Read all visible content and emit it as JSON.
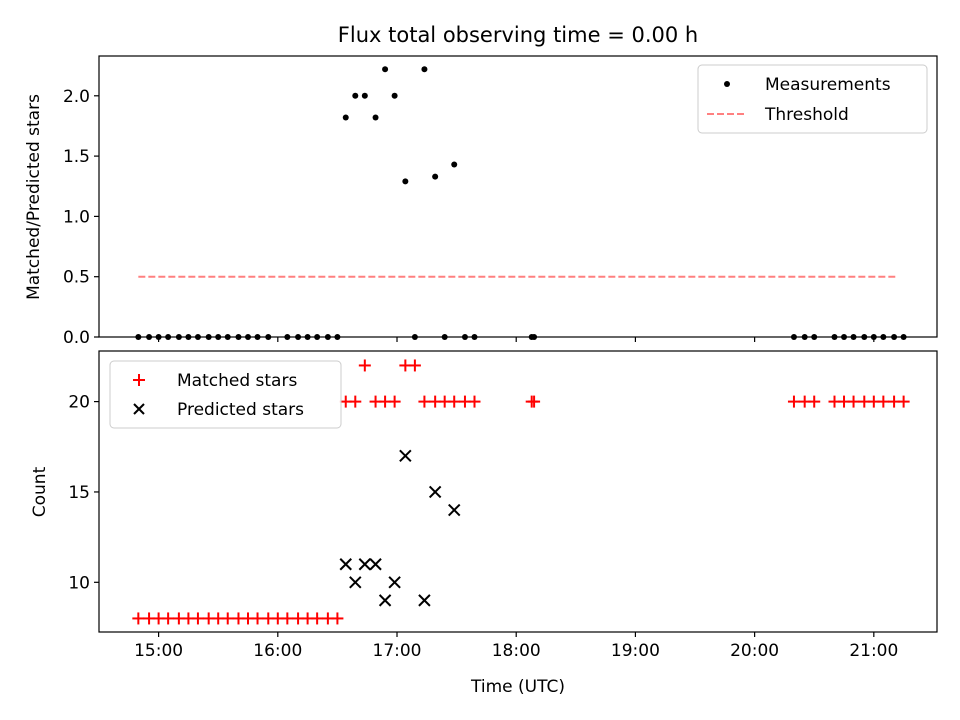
{
  "chart_data": {
    "title": "Flux total observing time = 0.00 h",
    "xlabel": "Time (UTC)",
    "x_unit": "hours UTC",
    "xlim": [
      14.5,
      21.53
    ],
    "xticks": [
      {
        "value": 15,
        "label": "15:00"
      },
      {
        "value": 16,
        "label": "16:00"
      },
      {
        "value": 17,
        "label": "17:00"
      },
      {
        "value": 18,
        "label": "18:00"
      },
      {
        "value": 19,
        "label": "19:00"
      },
      {
        "value": 20,
        "label": "20:00"
      },
      {
        "value": 21,
        "label": "21:00"
      }
    ],
    "panels": [
      {
        "type": "scatter",
        "ylabel": "Matched/Predicted stars",
        "ylim": [
          0,
          2.33
        ],
        "yticks": [
          "0.0",
          "0.5",
          "1.0",
          "1.5",
          "2.0"
        ],
        "legend": {
          "position": "top-right",
          "entries": [
            "Measurements",
            "Threshold"
          ]
        },
        "series": [
          {
            "name": "Measurements",
            "marker": "dot",
            "color": "#000000",
            "points": [
              [
                14.83,
                0
              ],
              [
                14.92,
                0
              ],
              [
                15.0,
                0
              ],
              [
                15.08,
                0
              ],
              [
                15.17,
                0
              ],
              [
                15.25,
                0
              ],
              [
                15.33,
                0
              ],
              [
                15.42,
                0
              ],
              [
                15.5,
                0
              ],
              [
                15.58,
                0
              ],
              [
                15.67,
                0
              ],
              [
                15.75,
                0
              ],
              [
                15.83,
                0
              ],
              [
                15.92,
                0
              ],
              [
                16.08,
                0
              ],
              [
                16.17,
                0
              ],
              [
                16.25,
                0
              ],
              [
                16.33,
                0
              ],
              [
                16.42,
                0
              ],
              [
                16.5,
                0
              ],
              [
                16.57,
                1.82
              ],
              [
                16.65,
                2.0
              ],
              [
                16.73,
                2.0
              ],
              [
                16.82,
                1.82
              ],
              [
                16.9,
                2.22
              ],
              [
                16.98,
                2.0
              ],
              [
                17.07,
                1.29
              ],
              [
                17.15,
                0
              ],
              [
                17.23,
                2.22
              ],
              [
                17.32,
                1.33
              ],
              [
                17.4,
                0
              ],
              [
                17.48,
                1.43
              ],
              [
                17.57,
                0
              ],
              [
                17.65,
                0
              ],
              [
                18.13,
                0
              ],
              [
                18.15,
                0
              ],
              [
                20.33,
                0
              ],
              [
                20.42,
                0
              ],
              [
                20.5,
                0
              ],
              [
                20.67,
                0
              ],
              [
                20.75,
                0
              ],
              [
                20.83,
                0
              ],
              [
                20.92,
                0
              ],
              [
                21.0,
                0
              ],
              [
                21.08,
                0
              ],
              [
                21.17,
                0
              ],
              [
                21.25,
                0
              ]
            ]
          },
          {
            "name": "Threshold",
            "type": "line",
            "style": "dashed",
            "color": "#ff8080",
            "points": [
              [
                14.83,
                0.5
              ],
              [
                21.18,
                0.5
              ]
            ]
          }
        ]
      },
      {
        "type": "scatter",
        "ylabel": "Count",
        "ylim": [
          7.25,
          22.8
        ],
        "yticks": [
          "10",
          "15",
          "20"
        ],
        "legend": {
          "position": "top-left",
          "entries": [
            "Matched stars",
            "Predicted stars"
          ]
        },
        "series": [
          {
            "name": "Matched stars",
            "marker": "plus",
            "color": "#ff0000",
            "points": [
              [
                14.83,
                8
              ],
              [
                14.92,
                8
              ],
              [
                15.0,
                8
              ],
              [
                15.08,
                8
              ],
              [
                15.17,
                8
              ],
              [
                15.25,
                8
              ],
              [
                15.33,
                8
              ],
              [
                15.42,
                8
              ],
              [
                15.5,
                8
              ],
              [
                15.58,
                8
              ],
              [
                15.67,
                8
              ],
              [
                15.75,
                8
              ],
              [
                15.83,
                8
              ],
              [
                15.92,
                8
              ],
              [
                16.0,
                8
              ],
              [
                16.08,
                8
              ],
              [
                16.17,
                8
              ],
              [
                16.25,
                8
              ],
              [
                16.33,
                8
              ],
              [
                16.42,
                8
              ],
              [
                16.5,
                8
              ],
              [
                16.57,
                20
              ],
              [
                16.65,
                20
              ],
              [
                16.73,
                22
              ],
              [
                16.82,
                20
              ],
              [
                16.9,
                20
              ],
              [
                16.98,
                20
              ],
              [
                17.07,
                22
              ],
              [
                17.15,
                22
              ],
              [
                17.23,
                20
              ],
              [
                17.32,
                20
              ],
              [
                17.4,
                20
              ],
              [
                17.48,
                20
              ],
              [
                17.57,
                20
              ],
              [
                17.65,
                20
              ],
              [
                18.13,
                20
              ],
              [
                18.15,
                20
              ],
              [
                20.33,
                20
              ],
              [
                20.42,
                20
              ],
              [
                20.5,
                20
              ],
              [
                20.67,
                20
              ],
              [
                20.75,
                20
              ],
              [
                20.83,
                20
              ],
              [
                20.92,
                20
              ],
              [
                21.0,
                20
              ],
              [
                21.08,
                20
              ],
              [
                21.17,
                20
              ],
              [
                21.25,
                20
              ]
            ]
          },
          {
            "name": "Predicted stars",
            "marker": "x",
            "color": "#000000",
            "points": [
              [
                16.57,
                11
              ],
              [
                16.65,
                10
              ],
              [
                16.73,
                11
              ],
              [
                16.82,
                11
              ],
              [
                16.9,
                9
              ],
              [
                16.98,
                10
              ],
              [
                17.07,
                17
              ],
              [
                17.23,
                9
              ],
              [
                17.32,
                15
              ],
              [
                17.48,
                14
              ]
            ]
          }
        ]
      }
    ]
  }
}
